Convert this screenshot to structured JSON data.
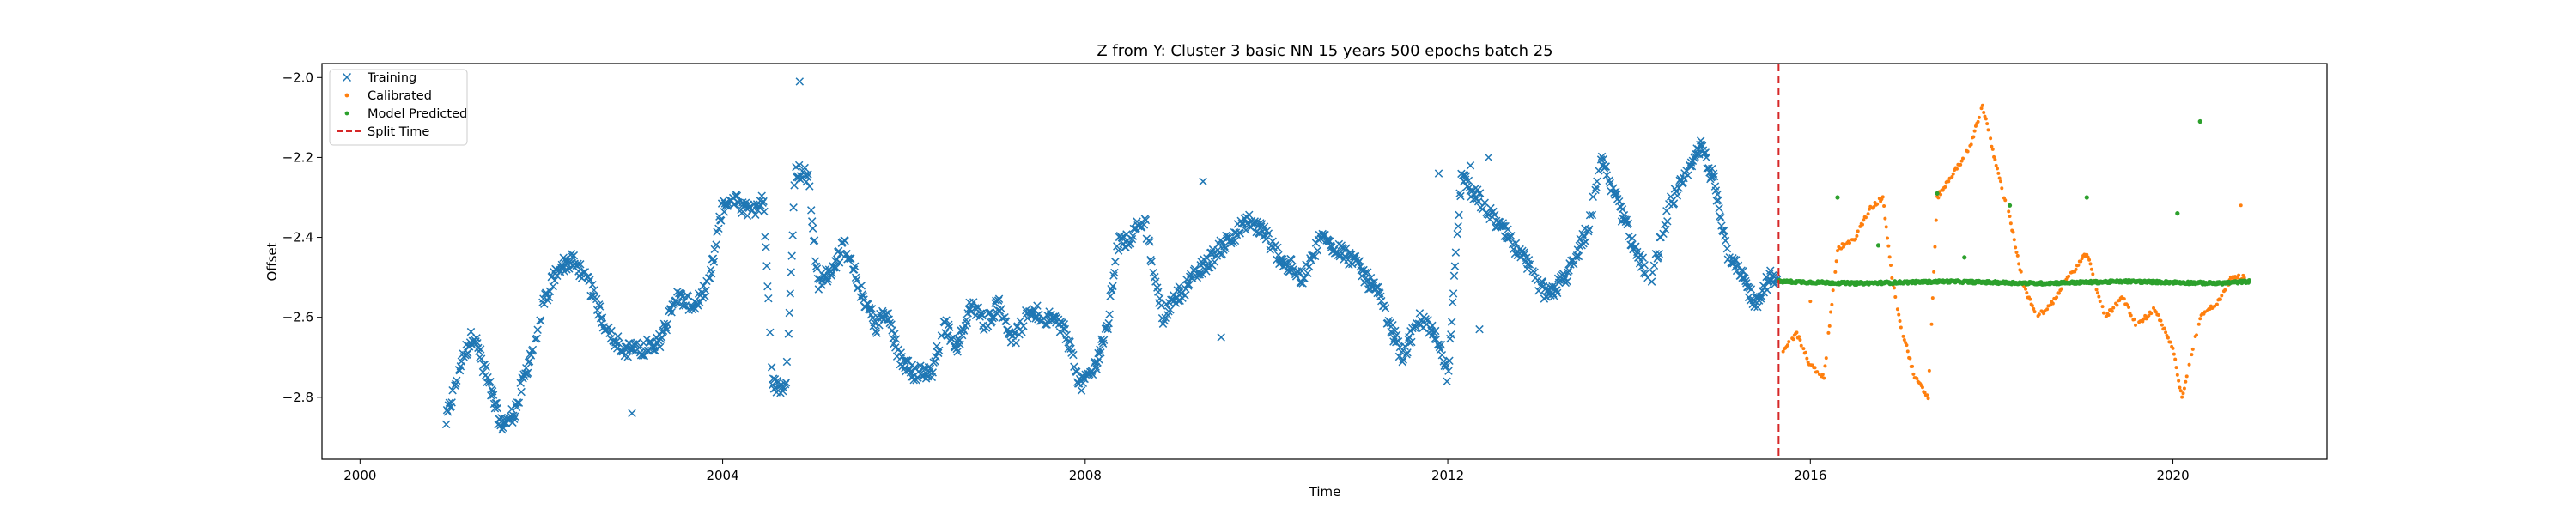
{
  "chart_data": {
    "type": "scatter",
    "title": "Z from Y: Cluster 3 basic NN 15 years 500 epochs batch 25",
    "xlabel": "Time",
    "ylabel": "Offset",
    "xlim": [
      1999.58,
      2021.7
    ],
    "ylim": [
      -2.955,
      -1.965
    ],
    "xticks": [
      2000,
      2004,
      2008,
      2012,
      2016,
      2020
    ],
    "xtick_labels": [
      "2000",
      "2004",
      "2008",
      "2012",
      "2016",
      "2020"
    ],
    "yticks": [
      -2.8,
      -2.6,
      -2.4,
      -2.2,
      -2.0
    ],
    "ytick_labels": [
      "−2.8",
      "−2.6",
      "−2.4",
      "−2.2",
      "−2.0"
    ],
    "grid": false,
    "legend_position": "upper-left",
    "split_time": 2015.65,
    "series": [
      {
        "name": "Training",
        "marker": "x",
        "color": "#1f77b4",
        "keypoints": [
          [
            2000.95,
            -2.86
          ],
          [
            2001.1,
            -2.72
          ],
          [
            2001.25,
            -2.64
          ],
          [
            2001.4,
            -2.75
          ],
          [
            2001.55,
            -2.87
          ],
          [
            2001.7,
            -2.84
          ],
          [
            2001.85,
            -2.72
          ],
          [
            2002.05,
            -2.55
          ],
          [
            2002.2,
            -2.47
          ],
          [
            2002.35,
            -2.46
          ],
          [
            2002.5,
            -2.5
          ],
          [
            2002.7,
            -2.62
          ],
          [
            2002.9,
            -2.68
          ],
          [
            2003.1,
            -2.68
          ],
          [
            2003.3,
            -2.66
          ],
          [
            2003.5,
            -2.55
          ],
          [
            2003.7,
            -2.57
          ],
          [
            2003.85,
            -2.52
          ],
          [
            2004.0,
            -2.32
          ],
          [
            2004.15,
            -2.31
          ],
          [
            2004.3,
            -2.34
          ],
          [
            2004.45,
            -2.3
          ],
          [
            2004.55,
            -2.77
          ],
          [
            2004.7,
            -2.77
          ],
          [
            2004.8,
            -2.23
          ],
          [
            2004.95,
            -2.25
          ],
          [
            2005.05,
            -2.52
          ],
          [
            2005.2,
            -2.48
          ],
          [
            2005.35,
            -2.42
          ],
          [
            2005.55,
            -2.55
          ],
          [
            2005.7,
            -2.62
          ],
          [
            2005.8,
            -2.58
          ],
          [
            2005.95,
            -2.7
          ],
          [
            2006.1,
            -2.74
          ],
          [
            2006.3,
            -2.74
          ],
          [
            2006.45,
            -2.62
          ],
          [
            2006.6,
            -2.67
          ],
          [
            2006.75,
            -2.56
          ],
          [
            2006.9,
            -2.62
          ],
          [
            2007.05,
            -2.56
          ],
          [
            2007.2,
            -2.66
          ],
          [
            2007.4,
            -2.58
          ],
          [
            2007.55,
            -2.6
          ],
          [
            2007.75,
            -2.62
          ],
          [
            2007.95,
            -2.77
          ],
          [
            2008.1,
            -2.73
          ],
          [
            2008.25,
            -2.62
          ],
          [
            2008.35,
            -2.42
          ],
          [
            2008.5,
            -2.4
          ],
          [
            2008.65,
            -2.35
          ],
          [
            2008.85,
            -2.6
          ],
          [
            2009.0,
            -2.55
          ],
          [
            2009.2,
            -2.5
          ],
          [
            2009.4,
            -2.45
          ],
          [
            2009.6,
            -2.4
          ],
          [
            2009.8,
            -2.36
          ],
          [
            2009.95,
            -2.38
          ],
          [
            2010.15,
            -2.45
          ],
          [
            2010.4,
            -2.5
          ],
          [
            2010.6,
            -2.4
          ],
          [
            2010.8,
            -2.43
          ],
          [
            2011.0,
            -2.47
          ],
          [
            2011.25,
            -2.55
          ],
          [
            2011.5,
            -2.7
          ],
          [
            2011.7,
            -2.6
          ],
          [
            2011.9,
            -2.66
          ],
          [
            2012.0,
            -2.75
          ],
          [
            2012.15,
            -2.25
          ],
          [
            2012.4,
            -2.32
          ],
          [
            2012.6,
            -2.38
          ],
          [
            2012.85,
            -2.46
          ],
          [
            2013.1,
            -2.55
          ],
          [
            2013.3,
            -2.5
          ],
          [
            2013.55,
            -2.38
          ],
          [
            2013.7,
            -2.2
          ],
          [
            2013.9,
            -2.33
          ],
          [
            2014.1,
            -2.45
          ],
          [
            2014.25,
            -2.5
          ],
          [
            2014.45,
            -2.32
          ],
          [
            2014.65,
            -2.24
          ],
          [
            2014.8,
            -2.17
          ],
          [
            2014.95,
            -2.27
          ],
          [
            2015.1,
            -2.45
          ],
          [
            2015.25,
            -2.5
          ],
          [
            2015.4,
            -2.57
          ],
          [
            2015.55,
            -2.5
          ],
          [
            2015.65,
            -2.52
          ]
        ],
        "outliers": [
          [
            2004.85,
            -2.01
          ],
          [
            2012.25,
            -2.22
          ],
          [
            2009.3,
            -2.26
          ],
          [
            2012.45,
            -2.2
          ],
          [
            2009.5,
            -2.65
          ],
          [
            2012.35,
            -2.63
          ],
          [
            2003.0,
            -2.84
          ],
          [
            2011.9,
            -2.24
          ]
        ]
      },
      {
        "name": "Calibrated",
        "marker": "dot",
        "color": "#ff7f0e",
        "keypoints": [
          [
            2015.7,
            -2.68
          ],
          [
            2015.85,
            -2.64
          ],
          [
            2016.0,
            -2.72
          ],
          [
            2016.15,
            -2.75
          ],
          [
            2016.3,
            -2.43
          ],
          [
            2016.5,
            -2.4
          ],
          [
            2016.65,
            -2.33
          ],
          [
            2016.8,
            -2.3
          ],
          [
            2016.9,
            -2.5
          ],
          [
            2017.0,
            -2.62
          ],
          [
            2017.15,
            -2.75
          ],
          [
            2017.3,
            -2.8
          ],
          [
            2017.4,
            -2.3
          ],
          [
            2017.55,
            -2.25
          ],
          [
            2017.75,
            -2.18
          ],
          [
            2017.9,
            -2.07
          ],
          [
            2018.05,
            -2.22
          ],
          [
            2018.2,
            -2.35
          ],
          [
            2018.35,
            -2.52
          ],
          [
            2018.5,
            -2.6
          ],
          [
            2018.65,
            -2.57
          ],
          [
            2018.85,
            -2.5
          ],
          [
            2019.05,
            -2.44
          ],
          [
            2019.25,
            -2.6
          ],
          [
            2019.45,
            -2.55
          ],
          [
            2019.6,
            -2.62
          ],
          [
            2019.8,
            -2.58
          ],
          [
            2020.0,
            -2.68
          ],
          [
            2020.1,
            -2.8
          ],
          [
            2020.3,
            -2.6
          ],
          [
            2020.5,
            -2.56
          ],
          [
            2020.65,
            -2.5
          ],
          [
            2020.8,
            -2.5
          ]
        ],
        "outliers": [
          [
            2020.75,
            -2.32
          ],
          [
            2016.0,
            -2.56
          ]
        ]
      },
      {
        "name": "Model Predicted",
        "marker": "dot",
        "color": "#2ca02c",
        "keypoints": [
          [
            2015.65,
            -2.51
          ],
          [
            2016.5,
            -2.515
          ],
          [
            2017.5,
            -2.51
          ],
          [
            2018.5,
            -2.515
          ],
          [
            2019.5,
            -2.51
          ],
          [
            2020.5,
            -2.515
          ],
          [
            2020.85,
            -2.51
          ]
        ],
        "outliers": [
          [
            2020.3,
            -2.11
          ],
          [
            2019.05,
            -2.3
          ],
          [
            2017.4,
            -2.29
          ],
          [
            2016.3,
            -2.3
          ],
          [
            2018.2,
            -2.32
          ],
          [
            2020.05,
            -2.34
          ],
          [
            2017.7,
            -2.45
          ],
          [
            2016.75,
            -2.42
          ]
        ]
      },
      {
        "name": "Split Time",
        "marker": "dashed-line",
        "color": "#d62728"
      }
    ]
  }
}
